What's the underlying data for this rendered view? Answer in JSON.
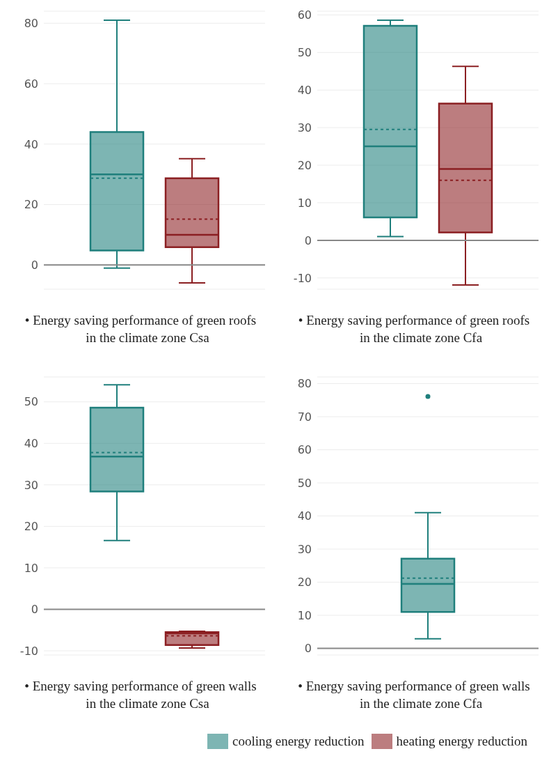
{
  "chart_data": [
    {
      "type": "box",
      "title": "• Energy saving performance of green roofs in the climate zone Csa",
      "categories": [
        null
      ],
      "ylim": [
        -8,
        84
      ],
      "yticks": [
        0,
        20,
        40,
        60,
        80
      ],
      "grid": "y",
      "legend": false,
      "ref_lines": [
        {
          "axis": "y",
          "value": 0,
          "color": "#888888"
        }
      ],
      "series": [
        {
          "color": "#1f7f7c",
          "boxes": [
            {
              "low": -1,
              "q1": 4.8,
              "median": 30,
              "q3": 44,
              "high": 81,
              "mean": 28.7
            }
          ]
        },
        {
          "color": "#8b1f22",
          "boxes": [
            {
              "low": -5.9,
              "q1": 5.9,
              "median": 10,
              "q3": 28.7,
              "high": 35.2,
              "mean": 15.2
            }
          ]
        }
      ]
    },
    {
      "type": "box",
      "title": "• Energy saving performance of green roofs in the climate zone Cfa",
      "categories": [
        null
      ],
      "ylim": [
        -13,
        61
      ],
      "yticks": [
        -10,
        0,
        10,
        20,
        30,
        40,
        50,
        60
      ],
      "grid": "y",
      "legend": false,
      "ref_lines": [
        {
          "axis": "y",
          "value": 0,
          "color": "#888888"
        }
      ],
      "series": [
        {
          "color": "#1f7f7c",
          "boxes": [
            {
              "low": 1,
              "q1": 6.1,
              "median": 25,
              "q3": 57.1,
              "high": 58.6,
              "mean": 29.5
            }
          ]
        },
        {
          "color": "#8b1f22",
          "boxes": [
            {
              "low": -11.9,
              "q1": 2.1,
              "median": 19,
              "q3": 36.4,
              "high": 46.3,
              "mean": 16
            }
          ]
        }
      ]
    },
    {
      "type": "box",
      "title": "• Energy saving performance of green walls in the climate zone Csa",
      "categories": [
        null
      ],
      "ylim": [
        -11,
        56
      ],
      "yticks": [
        -10,
        0,
        10,
        20,
        30,
        40,
        50
      ],
      "grid": "y",
      "legend": "bottom right",
      "ref_lines": [
        {
          "axis": "y",
          "value": 0,
          "color": "#888888"
        }
      ],
      "series": [
        {
          "name": "cooling energy reduction",
          "color": "#1f7f7c",
          "boxes": [
            {
              "low": 16.6,
              "q1": 28.4,
              "median": 36.8,
              "q3": 48.6,
              "high": 54.1,
              "mean": 37.8
            }
          ]
        },
        {
          "name": "heating energy reduction",
          "color": "#8b1f22",
          "boxes": [
            {
              "low": -9.3,
              "q1": -8.6,
              "median": -5.8,
              "q3": -5.5,
              "high": -5.3,
              "mean": -6.4
            }
          ]
        }
      ]
    },
    {
      "type": "box",
      "title": "• Energy saving performance of green walls in the climate zone Cfa",
      "categories": [
        null
      ],
      "ylim": [
        -2,
        82
      ],
      "yticks": [
        0,
        10,
        20,
        30,
        40,
        50,
        60,
        70,
        80
      ],
      "grid": "y",
      "legend": false,
      "ref_lines": [
        {
          "axis": "y",
          "value": 0,
          "color": "#888888"
        }
      ],
      "series": [
        {
          "color": "#1f7f7c",
          "boxes": [
            {
              "low": 2.9,
              "q1": 11,
              "median": 19.5,
              "q3": 27.1,
              "high": 41,
              "mean": 21.2,
              "outliers": [
                76.1
              ]
            }
          ]
        }
      ]
    }
  ]
}
